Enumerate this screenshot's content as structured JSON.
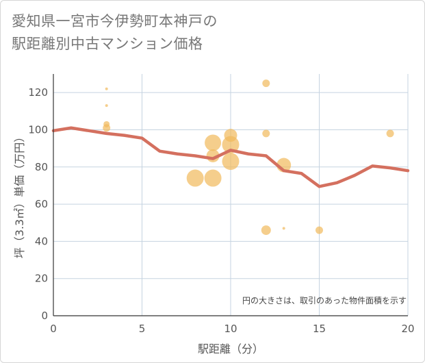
{
  "title": {
    "line1": "愛知県一宮市今伊勢町本神戸の",
    "line2": "駅距離別中古マンション価格"
  },
  "note": "円の大きさは、取引のあった物件面積を示す",
  "colors": {
    "line": "#d4705f",
    "bubble": "#f1b95b",
    "grid": "#c5d3e0",
    "axis": "#333333"
  },
  "chart_data": {
    "type": "scatter",
    "xlabel": "駅距離（分）",
    "ylabel": "坪（3.3㎡）単価（万円）",
    "xlim": [
      0,
      20
    ],
    "ylim": [
      0,
      130
    ],
    "x_ticks": [
      0,
      5,
      10,
      15,
      20
    ],
    "y_ticks": [
      0,
      20,
      40,
      60,
      80,
      100,
      120
    ],
    "grid": true,
    "line": {
      "x": [
        0,
        1,
        2,
        3,
        4,
        5,
        6,
        7,
        8,
        9,
        10,
        11,
        12,
        13,
        14,
        15,
        16,
        17,
        18,
        19,
        20
      ],
      "y": [
        99.5,
        101,
        99.5,
        98,
        97,
        95.5,
        88.5,
        87,
        86,
        84.5,
        89,
        87,
        86,
        78,
        76.5,
        69.5,
        71.5,
        75.5,
        80.5,
        79.5,
        78
      ]
    },
    "bubbles": [
      {
        "x": 3,
        "y": 122,
        "size": 1.5
      },
      {
        "x": 3,
        "y": 113,
        "size": 1.5
      },
      {
        "x": 3,
        "y": 103,
        "size": 4
      },
      {
        "x": 3,
        "y": 101,
        "size": 5
      },
      {
        "x": 8,
        "y": 74,
        "size": 12
      },
      {
        "x": 9,
        "y": 93,
        "size": 11.5
      },
      {
        "x": 9,
        "y": 86,
        "size": 9
      },
      {
        "x": 9,
        "y": 74,
        "size": 12
      },
      {
        "x": 10,
        "y": 97,
        "size": 9
      },
      {
        "x": 10,
        "y": 92,
        "size": 12
      },
      {
        "x": 10,
        "y": 83,
        "size": 12
      },
      {
        "x": 12,
        "y": 125,
        "size": 5
      },
      {
        "x": 12,
        "y": 98,
        "size": 5
      },
      {
        "x": 12,
        "y": 46,
        "size": 6.5
      },
      {
        "x": 13,
        "y": 81,
        "size": 10
      },
      {
        "x": 13,
        "y": 47,
        "size": 1.5
      },
      {
        "x": 15,
        "y": 46,
        "size": 5
      },
      {
        "x": 19,
        "y": 98,
        "size": 5
      }
    ]
  }
}
